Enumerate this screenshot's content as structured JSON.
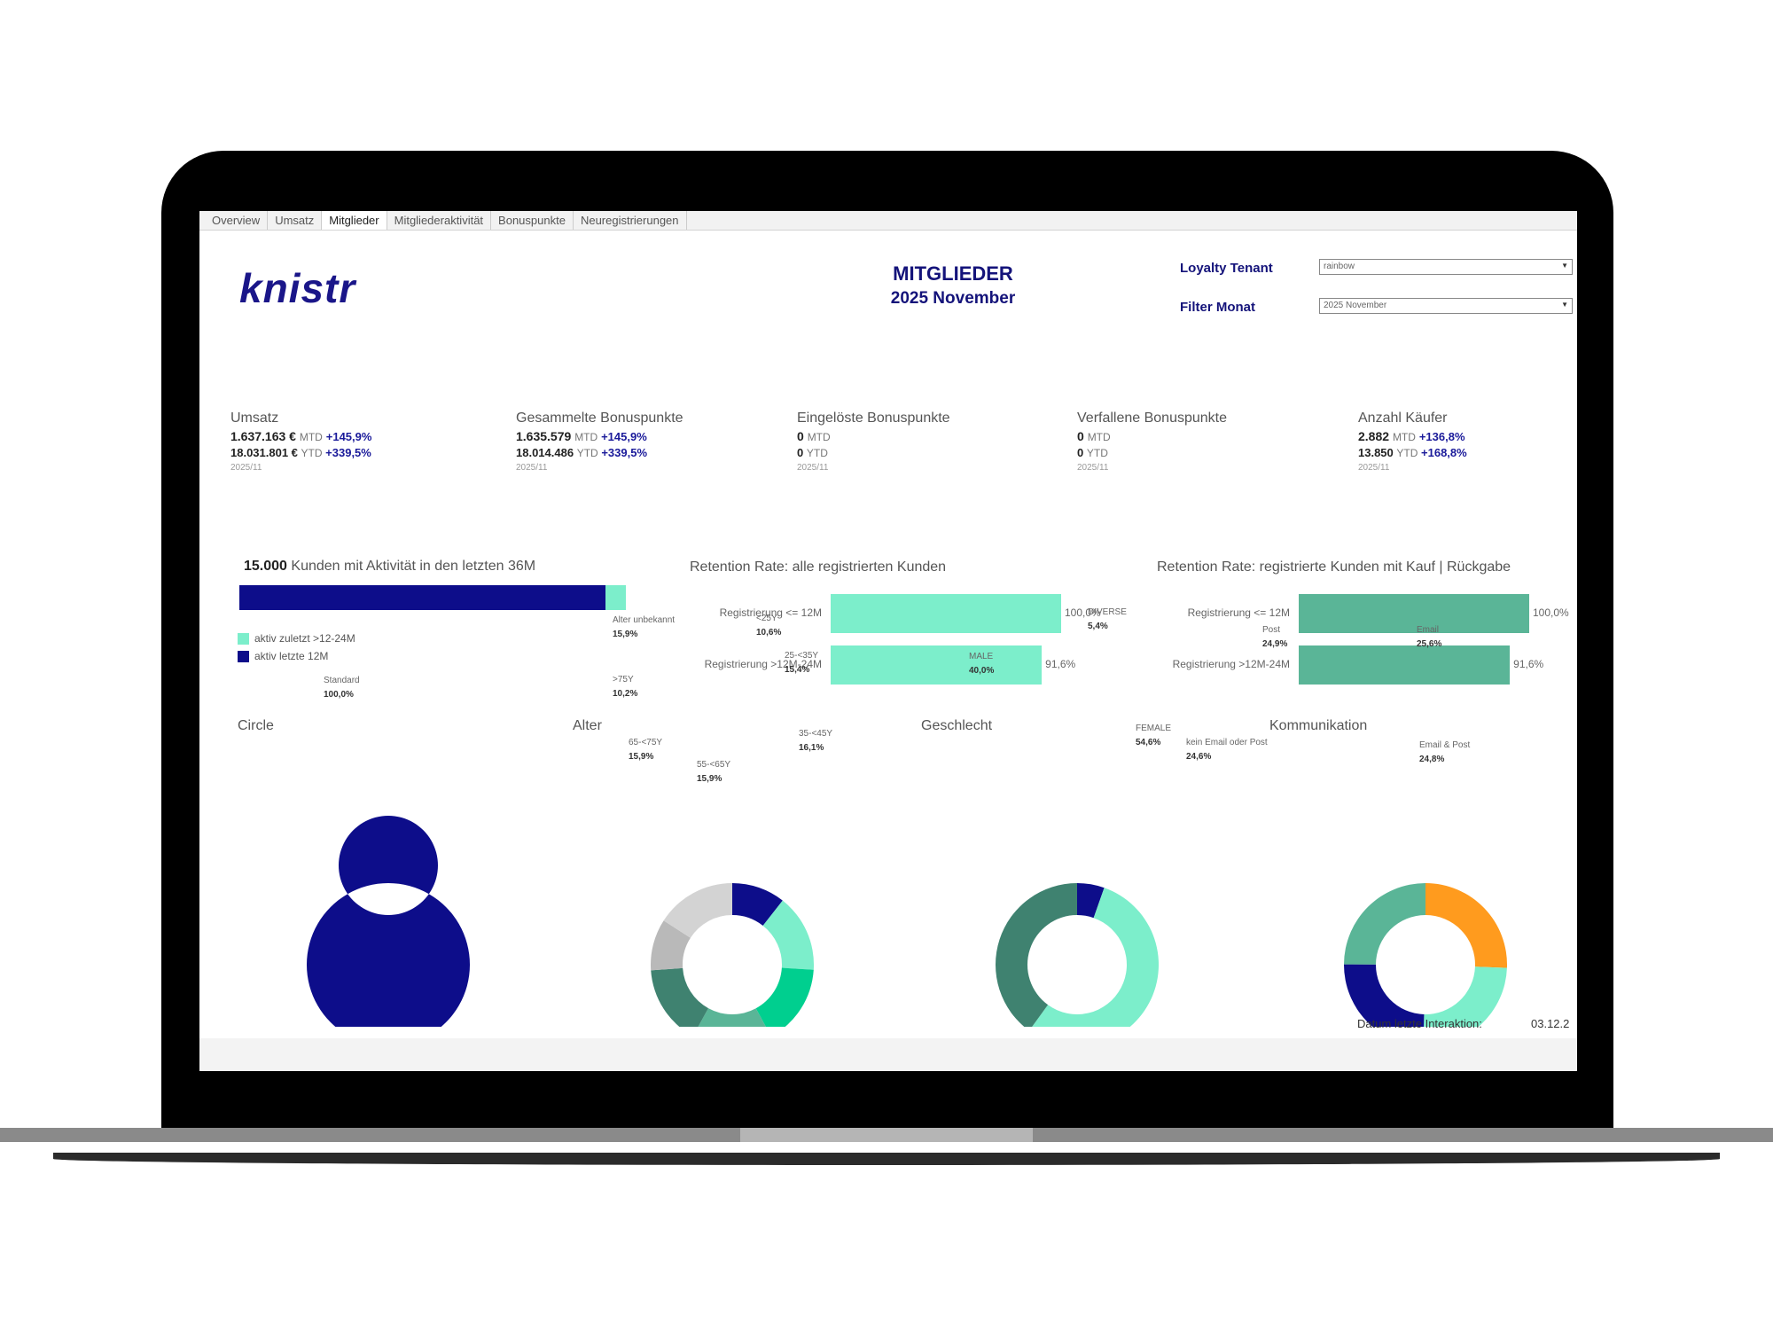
{
  "tabs": [
    "Overview",
    "Umsatz",
    "Mitglieder",
    "Mitgliederaktivität",
    "Bonuspunkte",
    "Neuregistrierungen"
  ],
  "active_tab": "Mitglieder",
  "logo": "knistr",
  "header": {
    "title": "MITGLIEDER",
    "subtitle": "2025 November"
  },
  "filters": {
    "tenant_label": "Loyalty Tenant",
    "tenant_value": "rainbow",
    "month_label": "Filter Monat",
    "month_value": "2025 November"
  },
  "kpis": [
    {
      "title": "Umsatz",
      "mtd_value": "1.637.163 €",
      "mtd_unit": "MTD",
      "mtd_change": "+145,9%",
      "ytd_value": "18.031.801 €",
      "ytd_unit": "YTD",
      "ytd_change": "+339,5%",
      "date": "2025/11"
    },
    {
      "title": "Gesammelte Bonuspunkte",
      "mtd_value": "1.635.579",
      "mtd_unit": "MTD",
      "mtd_change": "+145,9%",
      "ytd_value": "18.014.486",
      "ytd_unit": "YTD",
      "ytd_change": "+339,5%",
      "date": "2025/11"
    },
    {
      "title": "Eingelöste Bonuspunkte",
      "mtd_value": "0",
      "mtd_unit": "MTD",
      "mtd_change": "",
      "ytd_value": "0",
      "ytd_unit": "YTD",
      "ytd_change": "",
      "date": "2025/11"
    },
    {
      "title": "Verfallene Bonuspunkte",
      "mtd_value": "0",
      "mtd_unit": "MTD",
      "mtd_change": "",
      "ytd_value": "0",
      "ytd_unit": "YTD",
      "ytd_change": "",
      "date": "2025/11"
    },
    {
      "title": "Anzahl Käufer",
      "mtd_value": "2.882",
      "mtd_unit": "MTD",
      "mtd_change": "+136,8%",
      "ytd_value": "13.850",
      "ytd_unit": "YTD",
      "ytd_change": "+168,8%",
      "date": "2025/11"
    }
  ],
  "activity": {
    "count": "15.000",
    "label": "Kunden mit Aktivität in den letzten 36M",
    "legend": [
      "aktiv zuletzt >12-24M",
      "aktiv letzte 12M"
    ],
    "colors": [
      "#7ceecb",
      "#0d0d8a"
    ]
  },
  "retention_all": {
    "title": "Retention Rate: alle registrierten Kunden",
    "color": "#7ceecb"
  },
  "retention_buy": {
    "title": "Retention Rate: registrierte Kunden mit Kauf | Rückgabe",
    "color": "#5ab597"
  },
  "donut_titles": {
    "circle": "Circle",
    "alter": "Alter",
    "geschlecht": "Geschlecht",
    "kommunikation": "Kommunikation"
  },
  "footer": {
    "label": "Datum letzte Interaktion:",
    "value": "03.12.2"
  },
  "chart_data": [
    {
      "type": "bar",
      "orientation": "horizontal",
      "stacked": true,
      "title": "15.000 Kunden mit Aktivität in den letzten 36M",
      "series": [
        {
          "name": "aktiv letzte 12M",
          "values": [
            95
          ]
        },
        {
          "name": "aktiv zuletzt >12-24M",
          "values": [
            5
          ]
        }
      ]
    },
    {
      "type": "bar",
      "orientation": "horizontal",
      "title": "Retention Rate: alle registrierten Kunden",
      "categories": [
        "Registrierung <= 12M",
        "Registrierung >12M-24M"
      ],
      "values": [
        100.0,
        91.6
      ],
      "value_labels": [
        "100,0%",
        "91,6%"
      ]
    },
    {
      "type": "bar",
      "orientation": "horizontal",
      "title": "Retention Rate: registrierte Kunden mit Kauf | Rückgabe",
      "categories": [
        "Registrierung <= 12M",
        "Registrierung >12M-24M"
      ],
      "values": [
        100.0,
        91.6
      ],
      "value_labels": [
        "100,0%",
        "91,6%"
      ]
    },
    {
      "type": "pie",
      "title": "Circle",
      "slices": [
        {
          "label": "Standard",
          "value": 100.0,
          "text": "100,0%",
          "color": "#0d0d8a"
        }
      ]
    },
    {
      "type": "pie",
      "title": "Alter",
      "slices": [
        {
          "label": "<25Y",
          "value": 10.6,
          "text": "10,6%",
          "color": "#0d0d8a"
        },
        {
          "label": "25-<35Y",
          "value": 15.4,
          "text": "15,4%",
          "color": "#7ceecb"
        },
        {
          "label": "35-<45Y",
          "value": 16.1,
          "text": "16,1%",
          "color": "#00cf8f"
        },
        {
          "label": "55-<65Y",
          "value": 15.9,
          "text": "15,9%",
          "color": "#5ab597"
        },
        {
          "label": "65-<75Y",
          "value": 15.9,
          "text": "15,9%",
          "color": "#3f8270"
        },
        {
          "label": ">75Y",
          "value": 10.2,
          "text": "10,2%",
          "color": "#b9b9b9"
        },
        {
          "label": "Alter unbekannt",
          "value": 15.9,
          "text": "15,9%",
          "color": "#d3d3d3"
        }
      ]
    },
    {
      "type": "pie",
      "title": "Geschlecht",
      "slices": [
        {
          "label": "DIVERSE",
          "value": 5.4,
          "text": "5,4%",
          "color": "#0d0d8a"
        },
        {
          "label": "FEMALE",
          "value": 54.6,
          "text": "54,6%",
          "color": "#7ceecb"
        },
        {
          "label": "MALE",
          "value": 40.0,
          "text": "40,0%",
          "color": "#3f8270"
        }
      ]
    },
    {
      "type": "pie",
      "title": "Kommunikation",
      "slices": [
        {
          "label": "Email",
          "value": 25.6,
          "text": "25,6%",
          "color": "#ff9b1e"
        },
        {
          "label": "Email & Post",
          "value": 24.8,
          "text": "24,8%",
          "color": "#7ceecb"
        },
        {
          "label": "kein Email oder Post",
          "value": 24.6,
          "text": "24,6%",
          "color": "#0d0d8a"
        },
        {
          "label": "Post",
          "value": 24.9,
          "text": "24,9%",
          "color": "#5ab597"
        }
      ]
    }
  ]
}
